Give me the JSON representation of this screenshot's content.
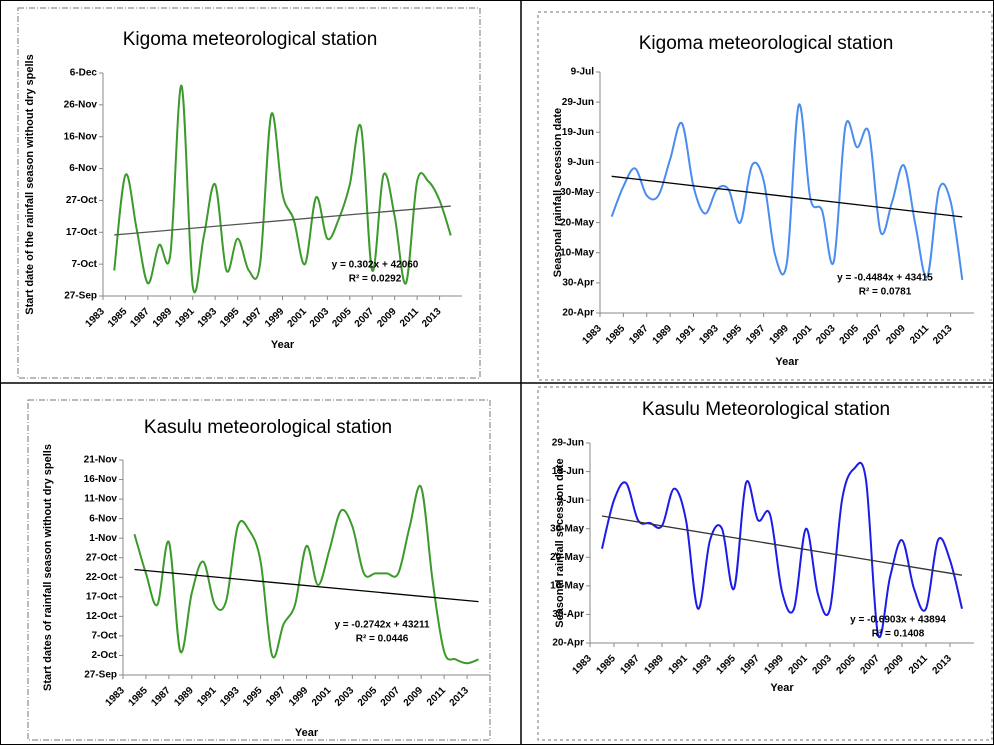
{
  "chart_data": [
    {
      "type": "line",
      "title": "Kigoma meteorological station",
      "x_label": "Year",
      "y_label": "Start date of the rainfall season without dry spells",
      "x": [
        1984,
        1985,
        1986,
        1987,
        1988,
        1989,
        1990,
        1991,
        1992,
        1993,
        1994,
        1995,
        1996,
        1997,
        1998,
        1999,
        2000,
        2001,
        2002,
        2003,
        2004,
        2005,
        2006,
        2007,
        2008,
        2009,
        2010,
        2011,
        2012,
        2013,
        2014
      ],
      "values": [
        42648,
        42678,
        42661,
        42644,
        42656,
        42653,
        42706,
        42643,
        42659,
        42675,
        42648,
        42658,
        42648,
        42650,
        42697,
        42672,
        42664,
        42650,
        42671,
        42658,
        42664,
        42675,
        42693,
        42648,
        42678,
        42665,
        42644,
        42676,
        42676,
        42670,
        42659
      ],
      "color": "#3c9a2c",
      "xlim": [
        1983,
        2015
      ],
      "xticks": [
        1983,
        1985,
        1987,
        1989,
        1991,
        1993,
        1995,
        1997,
        1999,
        2001,
        2003,
        2005,
        2007,
        2009,
        2011,
        2013
      ],
      "ylim": [
        42640,
        42710
      ],
      "yticks": [
        {
          "value": 42640,
          "label": "27-Sep"
        },
        {
          "value": 42650,
          "label": "7-Oct"
        },
        {
          "value": 42660,
          "label": "17-Oct"
        },
        {
          "value": 42670,
          "label": "27-Oct"
        },
        {
          "value": 42680,
          "label": "6-Nov"
        },
        {
          "value": 42690,
          "label": "16-Nov"
        },
        {
          "value": 42700,
          "label": "26-Nov"
        },
        {
          "value": 42710,
          "label": "6-Dec"
        }
      ],
      "trendline": {
        "slope": 0.302,
        "intercept": 42060,
        "color": "#555555"
      },
      "annotations": [
        "y = 0.302x + 42060",
        "R² = 0.0292"
      ]
    },
    {
      "type": "line",
      "title": "Kigoma meteorological station",
      "x_label": "Year",
      "y_label": "Seasonal rainfall secession date",
      "x": [
        1984,
        1985,
        1986,
        1987,
        1988,
        1989,
        1990,
        1991,
        1992,
        1993,
        1994,
        1995,
        1996,
        1997,
        1998,
        1999,
        2000,
        2001,
        2002,
        2003,
        2004,
        2005,
        2006,
        2007,
        2008,
        2009,
        2010,
        2011,
        2012,
        2013,
        2014
      ],
      "values": [
        42512,
        42522,
        42528,
        42519,
        42519,
        42531,
        42543,
        42522,
        42513,
        42521,
        42521,
        42510,
        42529,
        42524,
        42499,
        42497,
        42549,
        42518,
        42514,
        42497,
        42542,
        42535,
        42540,
        42507,
        42517,
        42529,
        42509,
        42492,
        42521,
        42517,
        42491
      ],
      "color": "#4a8cf0",
      "xlim": [
        1983,
        2015
      ],
      "xticks": [
        1983,
        1985,
        1987,
        1989,
        1991,
        1993,
        1995,
        1997,
        1999,
        2001,
        2003,
        2005,
        2007,
        2009,
        2011,
        2013
      ],
      "ylim": [
        42480,
        42560
      ],
      "yticks": [
        {
          "value": 42480,
          "label": "20-Apr"
        },
        {
          "value": 42490,
          "label": "30-Apr"
        },
        {
          "value": 42500,
          "label": "10-May"
        },
        {
          "value": 42510,
          "label": "20-May"
        },
        {
          "value": 42520,
          "label": "30-May"
        },
        {
          "value": 42530,
          "label": "9-Jun"
        },
        {
          "value": 42540,
          "label": "19-Jun"
        },
        {
          "value": 42550,
          "label": "29-Jun"
        },
        {
          "value": 42560,
          "label": "9-Jul"
        }
      ],
      "trendline": {
        "slope": -0.4484,
        "intercept": 43415,
        "color": "#000000"
      },
      "annotations": [
        "y = -0.4484x + 43415",
        "R² = 0.0781"
      ]
    },
    {
      "type": "line",
      "title": "Kasulu meteorological station",
      "x_label": "Year",
      "y_label": "Start  dates of rainfall season without dry spells",
      "x": [
        1984,
        1985,
        1986,
        1987,
        1988,
        1989,
        1990,
        1991,
        1992,
        1993,
        1994,
        1995,
        1996,
        1997,
        1998,
        1999,
        2000,
        2001,
        2002,
        2003,
        2004,
        2005,
        2006,
        2007,
        2008,
        2009,
        2010,
        2011,
        2012,
        2013,
        2014
      ],
      "values": [
        42676,
        42666,
        42658,
        42674,
        42646,
        42661,
        42669,
        42658,
        42659,
        42678,
        42677,
        42669,
        42645,
        42653,
        42658,
        42673,
        42663,
        42672,
        42682,
        42678,
        42666,
        42666,
        42666,
        42666,
        42678,
        42688,
        42664,
        42646,
        42644,
        42643,
        42644
      ],
      "color": "#3c9a2c",
      "xlim": [
        1983,
        2015
      ],
      "xticks": [
        1983,
        1985,
        1987,
        1989,
        1991,
        1993,
        1995,
        1997,
        1999,
        2001,
        2003,
        2005,
        2007,
        2009,
        2011,
        2013
      ],
      "ylim": [
        42640,
        42695
      ],
      "yticks": [
        {
          "value": 42640,
          "label": "27-Sep"
        },
        {
          "value": 42645,
          "label": "2-Oct"
        },
        {
          "value": 42650,
          "label": "7-Oct"
        },
        {
          "value": 42655,
          "label": "12-Oct"
        },
        {
          "value": 42660,
          "label": "17-Oct"
        },
        {
          "value": 42665,
          "label": "22-Oct"
        },
        {
          "value": 42670,
          "label": "27-Oct"
        },
        {
          "value": 42675,
          "label": "1-Nov"
        },
        {
          "value": 42680,
          "label": "6-Nov"
        },
        {
          "value": 42685,
          "label": "11-Nov"
        },
        {
          "value": 42690,
          "label": "16-Nov"
        },
        {
          "value": 42695,
          "label": "21-Nov"
        }
      ],
      "trendline": {
        "slope": -0.2742,
        "intercept": 43211,
        "color": "#000000"
      },
      "annotations": [
        "y = -0.2742x + 43211",
        "R² = 0.0446"
      ]
    },
    {
      "type": "line",
      "title": "Kasulu Meteorological station",
      "x_label": "Year",
      "y_label": "Seasonal rainfall secession date",
      "x": [
        1984,
        1985,
        1986,
        1987,
        1988,
        1989,
        1990,
        1991,
        1992,
        1993,
        1994,
        1995,
        1996,
        1997,
        1998,
        1999,
        2000,
        2001,
        2002,
        2003,
        2004,
        2005,
        2006,
        2007,
        2008,
        2009,
        2010,
        2011,
        2012,
        2013,
        2014
      ],
      "values": [
        42513,
        42530,
        42536,
        42523,
        42522,
        42521,
        42534,
        42523,
        42492,
        42516,
        42520,
        42499,
        42536,
        42523,
        42525,
        42498,
        42492,
        42520,
        42497,
        42492,
        42530,
        42541,
        42537,
        42483,
        42503,
        42516,
        42499,
        42492,
        42516,
        42509,
        42492
      ],
      "color": "#1c1ce8",
      "xlim": [
        1983,
        2015
      ],
      "xticks": [
        1983,
        1985,
        1987,
        1989,
        1991,
        1993,
        1995,
        1997,
        1999,
        2001,
        2003,
        2005,
        2007,
        2009,
        2011,
        2013
      ],
      "ylim": [
        42480,
        42550
      ],
      "yticks": [
        {
          "value": 42480,
          "label": "20-Apr"
        },
        {
          "value": 42490,
          "label": "30-Apr"
        },
        {
          "value": 42500,
          "label": "10-May"
        },
        {
          "value": 42510,
          "label": "20-May"
        },
        {
          "value": 42520,
          "label": "30-May"
        },
        {
          "value": 42530,
          "label": "9-Jun"
        },
        {
          "value": 42540,
          "label": "19-Jun"
        },
        {
          "value": 42550,
          "label": "29-Jun"
        }
      ],
      "trendline": {
        "slope": -0.6903,
        "intercept": 43894,
        "color": "#333333"
      },
      "annotations": [
        "y = -0.6903x + 43894",
        "R² = 0.1408"
      ]
    }
  ]
}
